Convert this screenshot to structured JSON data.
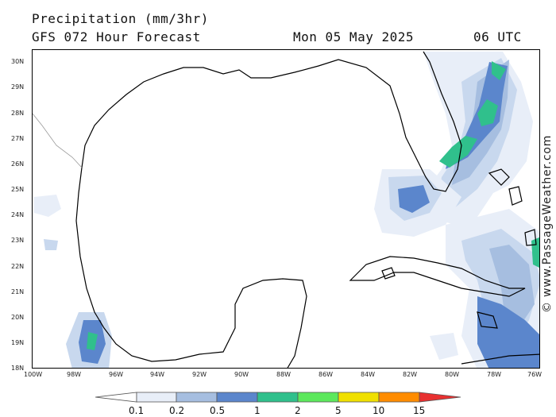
{
  "header": {
    "title": "Precipitation (mm/3hr)",
    "subtitle": "GFS 072 Hour Forecast",
    "valid_date": "Mon 05 May 2025",
    "valid_time": "06 UTC"
  },
  "credit": "© www.PassageWeather.com",
  "axes": {
    "lat_labels": [
      "30N",
      "29N",
      "28N",
      "27N",
      "26N",
      "25N",
      "24N",
      "23N",
      "22N",
      "21N",
      "20N",
      "19N",
      "18N"
    ],
    "lon_labels": [
      "100W",
      "98W",
      "96W",
      "94W",
      "92W",
      "90W",
      "88W",
      "86W",
      "84W",
      "82W",
      "80W",
      "78W",
      "76W"
    ],
    "lat_range": [
      18,
      30.5
    ],
    "lon_range": [
      -100,
      -76
    ]
  },
  "colorbar": {
    "labels": [
      "0.1",
      "0.2",
      "0.5",
      "1",
      "2",
      "5",
      "10",
      "15"
    ],
    "colors": [
      "#e8eef8",
      "#c8d8ee",
      "#a6bee0",
      "#5b86cc",
      "#30c08c",
      "#5ce85c",
      "#f0e000",
      "#ff8c00",
      "#e83030"
    ],
    "under_color": "#ffffff"
  },
  "colors": {
    "land_outline": "#000000",
    "border_line": "#999999"
  }
}
